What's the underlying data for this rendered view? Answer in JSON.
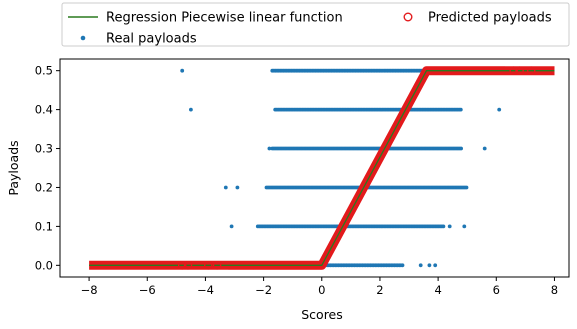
{
  "chart_data": {
    "type": "scatter",
    "xlabel": "Scores",
    "ylabel": "Payloads",
    "xlim": [
      -9,
      8.5
    ],
    "ylim": [
      -0.03,
      0.53
    ],
    "x_ticks": [
      -8,
      -6,
      -4,
      -2,
      0,
      2,
      4,
      6,
      8
    ],
    "x_tick_labels": [
      "−8",
      "−6",
      "−4",
      "−2",
      "0",
      "2",
      "4",
      "6",
      "8"
    ],
    "y_ticks": [
      0.0,
      0.1,
      0.2,
      0.3,
      0.4,
      0.5
    ],
    "y_tick_labels": [
      "0.0",
      "0.1",
      "0.2",
      "0.3",
      "0.4",
      "0.5"
    ],
    "grid": false,
    "legend_position": "top",
    "legend": [
      {
        "label": "Regression Piecewise linear function",
        "marker": "line",
        "color": "#2a7a1e"
      },
      {
        "label": "Predicted payloads",
        "marker": "open-circle",
        "color": "#e31a1c"
      },
      {
        "label": "Real payloads",
        "marker": "dot",
        "color": "#1f77b4"
      }
    ],
    "series": [
      {
        "name": "Regression Piecewise linear function",
        "kind": "line",
        "color": "#2a7a1e",
        "points": [
          [
            -8,
            0.0
          ],
          [
            0.0,
            0.0
          ],
          [
            3.6,
            0.5
          ],
          [
            6.0,
            0.5
          ],
          [
            8.0,
            0.5
          ]
        ]
      },
      {
        "name": "Real payloads",
        "kind": "scatter",
        "color": "#1f77b4",
        "ranges": [
          {
            "y": 0.5,
            "x_from": -1.7,
            "x_to": 5.8
          },
          {
            "y": 0.4,
            "x_from": -1.6,
            "x_to": 4.8
          },
          {
            "y": 0.3,
            "x_from": -1.7,
            "x_to": 4.8
          },
          {
            "y": 0.2,
            "x_from": -1.9,
            "x_to": 5.0
          },
          {
            "y": 0.1,
            "x_from": -2.2,
            "x_to": 4.2
          },
          {
            "y": 0.0,
            "x_from": -3.0,
            "x_to": 2.8
          }
        ],
        "isolated": [
          {
            "x": -4.8,
            "y": 0.5
          },
          {
            "x": -4.5,
            "y": 0.4
          },
          {
            "x": -1.8,
            "y": 0.3
          },
          {
            "x": 5.6,
            "y": 0.3
          },
          {
            "x": 6.1,
            "y": 0.4
          },
          {
            "x": -3.3,
            "y": 0.2
          },
          {
            "x": -2.9,
            "y": 0.2
          },
          {
            "x": -3.1,
            "y": 0.1
          },
          {
            "x": 4.4,
            "y": 0.1
          },
          {
            "x": 4.9,
            "y": 0.1
          },
          {
            "x": 3.4,
            "y": 0.0
          },
          {
            "x": 3.7,
            "y": 0.0
          },
          {
            "x": 3.9,
            "y": 0.0
          }
        ]
      },
      {
        "name": "Predicted payloads",
        "kind": "scatter-open",
        "color": "#e31a1c",
        "band": {
          "x_from": -3.2,
          "x_to": 6.3
        },
        "isolated": [
          {
            "x": -4.8,
            "y": 0.0
          },
          {
            "x": -4.6,
            "y": 0.0
          },
          {
            "x": -3.9,
            "y": 0.0
          },
          {
            "x": -3.6,
            "y": 0.0
          },
          {
            "x": 6.6,
            "y": 0.5
          },
          {
            "x": 6.8,
            "y": 0.5
          },
          {
            "x": 7.2,
            "y": 0.5
          }
        ]
      }
    ]
  }
}
